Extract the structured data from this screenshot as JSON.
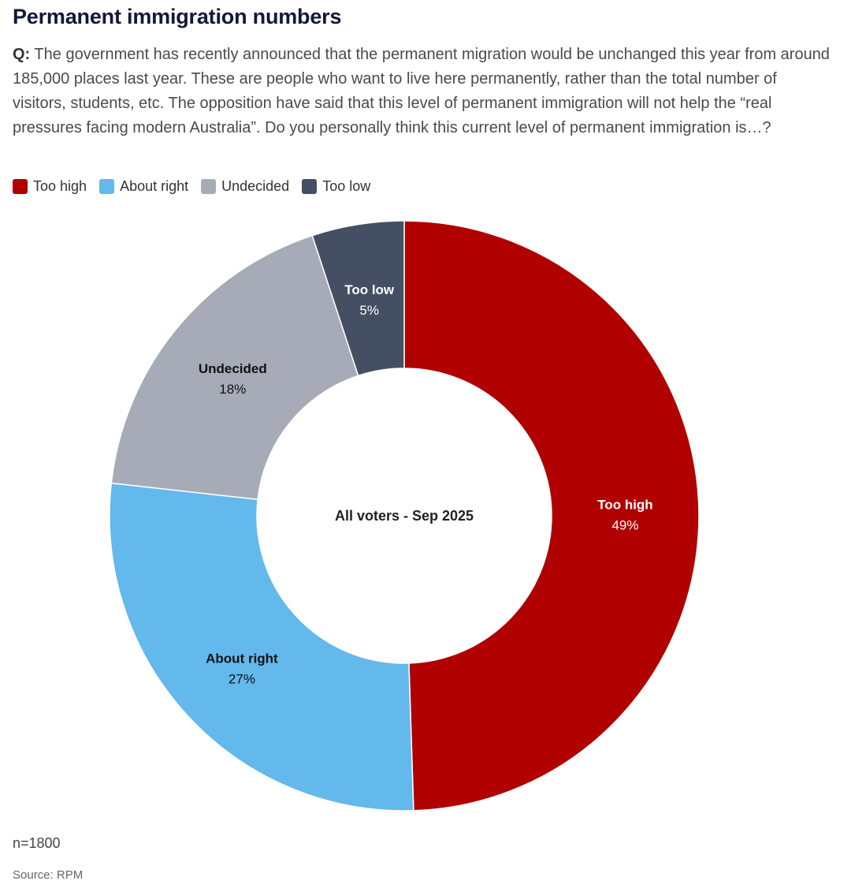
{
  "title": "Permanent immigration numbers",
  "question": {
    "label": "Q:",
    "text": "The government has recently announced that the permanent migration would be unchanged this year from around 185,000 places last year. These are people who want to live here permanently, rather than the total number of visitors, students, etc. The opposition have said that this level of permanent immigration will not help the “real pressures facing modern Australia”. Do you personally think this current level of permanent immigration is…?"
  },
  "footer": {
    "n": "n=1800",
    "source": "Source: RPM"
  },
  "chart_data": {
    "type": "pie",
    "center_label": "All voters - Sep 2025",
    "legend_position": "top-left",
    "categories": [
      "Too high",
      "About right",
      "Undecided",
      "Too low"
    ],
    "values": [
      49,
      27,
      18,
      5
    ],
    "value_labels": [
      "49%",
      "27%",
      "18%",
      "5%"
    ],
    "colors": [
      "#b00000",
      "#63b8ec",
      "#a7abb8",
      "#454f63"
    ],
    "label_colors": [
      "#ffffff",
      "#111111",
      "#111111",
      "#ffffff"
    ]
  }
}
